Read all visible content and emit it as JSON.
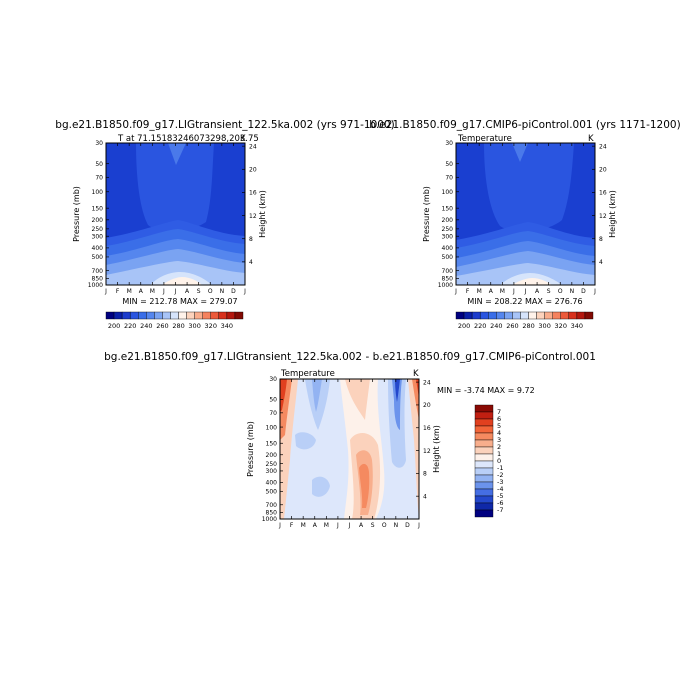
{
  "chart_data": [
    {
      "type": "heatmap",
      "title": "bg.e21.B1850.f09_g17.LIGtransient_122.5ka.002 (yrs 971-1000)",
      "subtitle_left": "T at 71.15183246073298,203.75",
      "subtitle_right": "K",
      "xlabel": "",
      "ylabel": "Pressure (mb)",
      "ylabel_right": "Height (km)",
      "x_ticks": [
        "J",
        "F",
        "M",
        "A",
        "M",
        "J",
        "J",
        "A",
        "S",
        "O",
        "N",
        "D",
        "J"
      ],
      "y_ticks": [
        "30",
        "50",
        "70",
        "100",
        "150",
        "200",
        "250",
        "300",
        "400",
        "500",
        "700",
        "850",
        "1000"
      ],
      "y_ticks_right": [
        "24",
        "20",
        "16",
        "12",
        "8",
        "4"
      ],
      "stats": "MIN = 212.78  MAX = 279.07",
      "min": 212.78,
      "max": 279.07
    },
    {
      "type": "heatmap",
      "title": "b.e21.B1850.f09_g17.CMIP6-piControl.001 (yrs 1171-1200)",
      "subtitle_left": "Temperature",
      "subtitle_right": "K",
      "xlabel": "",
      "ylabel": "Pressure (mb)",
      "ylabel_right": "Height (km)",
      "x_ticks": [
        "J",
        "F",
        "M",
        "A",
        "M",
        "J",
        "J",
        "A",
        "S",
        "O",
        "N",
        "D",
        "J"
      ],
      "y_ticks": [
        "30",
        "50",
        "70",
        "100",
        "150",
        "200",
        "250",
        "300",
        "400",
        "500",
        "700",
        "850",
        "1000"
      ],
      "y_ticks_right": [
        "24",
        "20",
        "16",
        "12",
        "8",
        "4"
      ],
      "stats": "MIN = 208.22  MAX = 276.76",
      "min": 208.22,
      "max": 276.76
    },
    {
      "type": "heatmap",
      "title": "bg.e21.B1850.f09_g17.LIGtransient_122.5ka.002 - b.e21.B1850.f09_g17.CMIP6-piControl.001",
      "subtitle_left": "Temperature",
      "subtitle_right": "K",
      "xlabel": "",
      "ylabel": "Pressure (mb)",
      "ylabel_right": "Height (km)",
      "x_ticks": [
        "J",
        "F",
        "M",
        "A",
        "M",
        "J",
        "J",
        "A",
        "S",
        "O",
        "N",
        "D",
        "J"
      ],
      "y_ticks": [
        "30",
        "50",
        "70",
        "100",
        "150",
        "200",
        "250",
        "300",
        "400",
        "500",
        "700",
        "850",
        "1000"
      ],
      "y_ticks_right": [
        "24",
        "20",
        "16",
        "12",
        "8",
        "4"
      ],
      "stats": "MIN =   -3.74  MAX =    9.72",
      "min": -3.74,
      "max": 9.72
    }
  ],
  "colorbars": {
    "absolute": {
      "labels": [
        "200",
        "220",
        "240",
        "260",
        "280",
        "300",
        "320",
        "340"
      ],
      "colors": [
        "#00007f",
        "#0a1fa8",
        "#1c3ccc",
        "#2a55e0",
        "#3a6ee8",
        "#5586ee",
        "#7aa3f2",
        "#a8c4f7",
        "#d6e4fb",
        "#fff3ea",
        "#fcd3bc",
        "#f9ad8c",
        "#f5825e",
        "#ec5a3a",
        "#d8311d",
        "#b3170e",
        "#820a04"
      ]
    },
    "difference": {
      "labels": [
        "7",
        "6",
        "5",
        "4",
        "3",
        "2",
        "1",
        "0",
        "-1",
        "-2",
        "-3",
        "-4",
        "-5",
        "-6",
        "-7"
      ],
      "colors": [
        "#8a0a04",
        "#c11f11",
        "#e1401f",
        "#f26539",
        "#f58a60",
        "#f8ae8c",
        "#fbd2bc",
        "#fdf1ea",
        "#dde7fb",
        "#b9cff7",
        "#93b3f2",
        "#6b93ec",
        "#456ee3",
        "#2448cc",
        "#0f28a8",
        "#000080"
      ]
    }
  }
}
